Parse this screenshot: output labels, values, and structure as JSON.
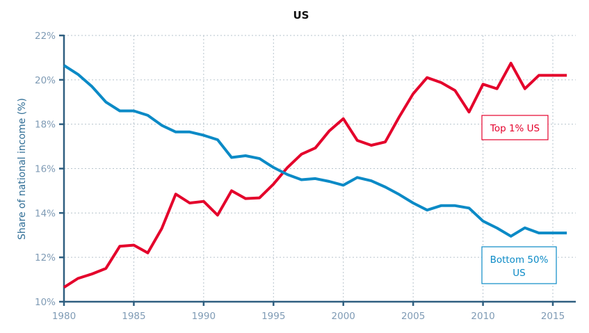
{
  "chart_data": {
    "type": "line",
    "title": "US",
    "xlabel": "",
    "ylabel": "Share of national income (%)",
    "xlim": [
      1980,
      2016
    ],
    "ylim": [
      10,
      22
    ],
    "grid": true,
    "x_ticks": [
      1980,
      1985,
      1990,
      1995,
      2000,
      2005,
      2010,
      2015
    ],
    "x_tick_labels": [
      "1980",
      "1985",
      "1990",
      "1995",
      "2000",
      "2005",
      "2010",
      "2015"
    ],
    "y_ticks": [
      10,
      12,
      14,
      16,
      18,
      20,
      22
    ],
    "y_tick_labels": [
      "10%",
      "12%",
      "14%",
      "16%",
      "18%",
      "20%",
      "22%"
    ],
    "x": [
      1980,
      1981,
      1982,
      1983,
      1984,
      1985,
      1986,
      1987,
      1988,
      1989,
      1990,
      1991,
      1992,
      1993,
      1994,
      1995,
      1996,
      1997,
      1998,
      1999,
      2000,
      2001,
      2002,
      2003,
      2004,
      2005,
      2006,
      2007,
      2008,
      2009,
      2010,
      2011,
      2012,
      2013,
      2014,
      2015,
      2016
    ],
    "series": [
      {
        "name": "Top 1% US",
        "label": "Top 1% US",
        "color": "#e4002b",
        "values": [
          10.65,
          11.05,
          11.25,
          11.5,
          12.5,
          12.55,
          12.2,
          13.3,
          14.85,
          14.45,
          14.52,
          13.9,
          15.0,
          14.65,
          14.68,
          15.3,
          16.05,
          16.65,
          16.93,
          17.7,
          18.25,
          17.27,
          17.05,
          17.2,
          18.33,
          19.37,
          20.1,
          19.88,
          19.52,
          18.55,
          19.8,
          19.6,
          20.75,
          19.6,
          20.2,
          20.2,
          20.2
        ]
      },
      {
        "name": "Bottom 50% US",
        "label_lines": [
          "Bottom 50%",
          "US"
        ],
        "color": "#0b8ac6",
        "values": [
          20.65,
          20.25,
          19.7,
          19.0,
          18.6,
          18.6,
          18.4,
          17.95,
          17.65,
          17.65,
          17.5,
          17.3,
          16.5,
          16.58,
          16.45,
          16.05,
          15.73,
          15.5,
          15.55,
          15.42,
          15.25,
          15.6,
          15.45,
          15.17,
          14.83,
          14.45,
          14.13,
          14.33,
          14.33,
          14.22,
          13.63,
          13.32,
          12.95,
          13.33,
          13.1,
          13.1,
          13.1
        ]
      }
    ]
  }
}
